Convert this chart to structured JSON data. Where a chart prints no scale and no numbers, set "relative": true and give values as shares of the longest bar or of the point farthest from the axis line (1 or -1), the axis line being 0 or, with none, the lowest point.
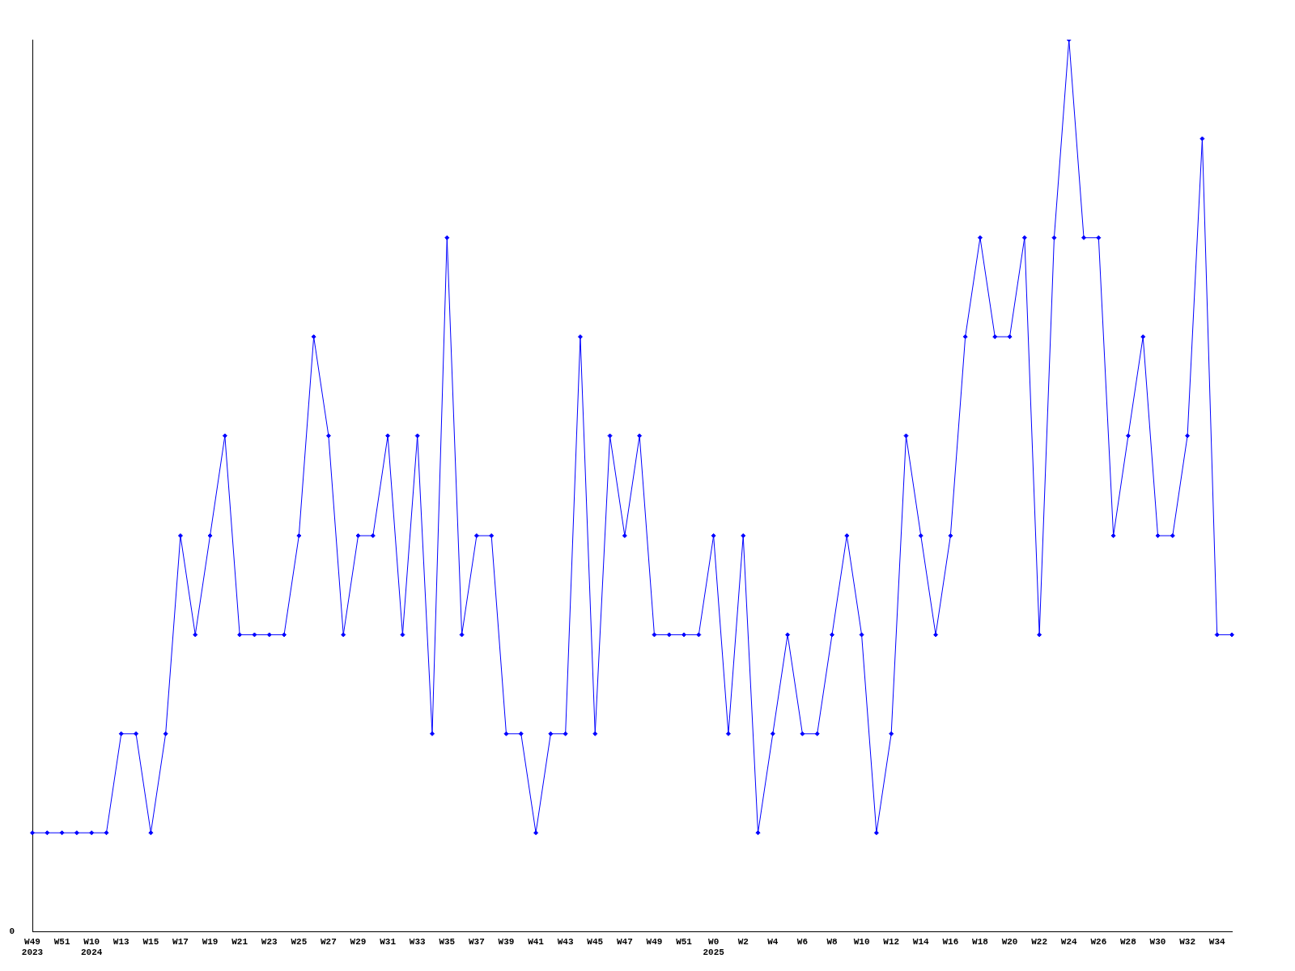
{
  "chart_data": {
    "type": "line",
    "relative": true,
    "color": "#0000ff",
    "marker": "diamond",
    "grid": false,
    "legend": false,
    "annotations": [
      "0"
    ],
    "categories": [
      "W49\n2023",
      null,
      "W51",
      null,
      "W10\n2024",
      null,
      "W13",
      null,
      "W15",
      null,
      "W17",
      null,
      "W19",
      null,
      "W21",
      null,
      "W23",
      null,
      "W25",
      null,
      "W27",
      null,
      "W29",
      null,
      "W31",
      null,
      "W33",
      null,
      "W35",
      null,
      "W37",
      null,
      "W39",
      null,
      "W41",
      null,
      "W43",
      null,
      "W45",
      null,
      "W47",
      null,
      "W49",
      null,
      "W51",
      null,
      "W0\n2025",
      null,
      "W2",
      null,
      "W4",
      null,
      "W6",
      null,
      "W8",
      null,
      "W10",
      null,
      "W12",
      null,
      "W14",
      null,
      "W16",
      null,
      "W18",
      null,
      "W20",
      null,
      "W22",
      null,
      "W24",
      null,
      "W26",
      null,
      "W28",
      null,
      "W30",
      null,
      "W32",
      null,
      "W34",
      null
    ],
    "values": [
      0.111,
      0.111,
      0.111,
      0.111,
      0.111,
      0.111,
      0.222,
      0.222,
      0.111,
      0.222,
      0.444,
      0.333,
      0.444,
      0.556,
      0.333,
      0.333,
      0.333,
      0.333,
      0.444,
      0.667,
      0.556,
      0.333,
      0.444,
      0.444,
      0.556,
      0.333,
      0.556,
      0.222,
      0.778,
      0.333,
      0.444,
      0.444,
      0.222,
      0.222,
      0.111,
      0.222,
      0.222,
      0.667,
      0.222,
      0.556,
      0.444,
      0.556,
      0.333,
      0.333,
      0.333,
      0.333,
      0.444,
      0.222,
      0.444,
      0.111,
      0.222,
      0.333,
      0.222,
      0.222,
      0.333,
      0.444,
      0.333,
      0.111,
      0.222,
      0.556,
      0.444,
      0.333,
      0.444,
      0.667,
      0.778,
      0.667,
      0.667,
      0.778,
      0.333,
      0.778,
      1,
      0.778,
      0.778,
      0.444,
      0.556,
      0.667,
      0.444,
      0.444,
      0.556,
      0.889,
      0.333,
      0.333
    ]
  }
}
